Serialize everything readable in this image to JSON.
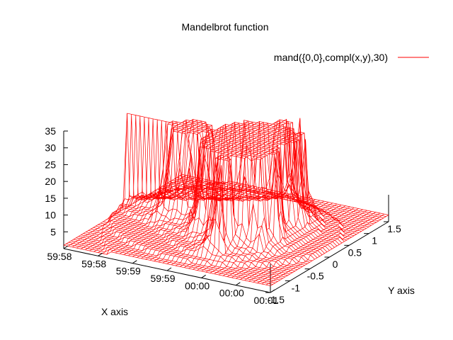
{
  "chart_data": {
    "type": "surface",
    "title": "Mandelbrot function",
    "xlabel": "X axis",
    "ylabel": "Y axis",
    "legend": {
      "label": "mand({0,0},compl(x,y),30)",
      "position": "top-right",
      "color": "#ff0000"
    },
    "series": [
      {
        "name": "mand({0,0},compl(x,y),30)",
        "function": "mand({0,0},compl(x,y),30)",
        "color": "#ff0000"
      }
    ],
    "x_ticks": [
      "59:58",
      "59:58",
      "59:59",
      "59:59",
      "00:00",
      "00:00",
      "00:01"
    ],
    "y_ticks": [
      "-1.5",
      "-1",
      "-0.5",
      "0",
      "0.5",
      "1",
      "1.5"
    ],
    "z_ticks": [
      "5",
      "10",
      "15",
      "20",
      "25",
      "30",
      "35"
    ],
    "xrange": [
      -2,
      1
    ],
    "yrange": [
      -1.5,
      1.5
    ],
    "zrange": [
      0,
      35
    ],
    "iterations": 30,
    "grid": false
  }
}
